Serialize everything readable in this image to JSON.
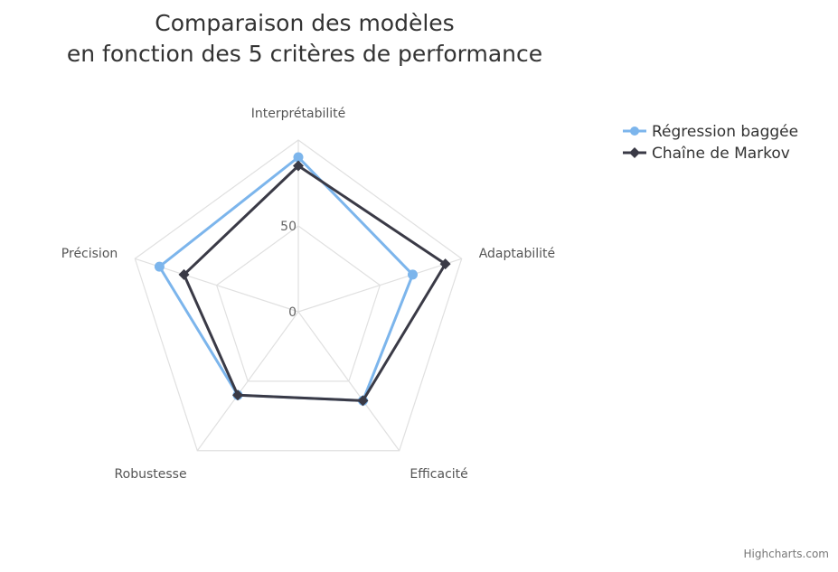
{
  "chart_data": {
    "type": "radar",
    "title": [
      "Comparaison des modèles",
      "en fonction des 5 critères de performance"
    ],
    "categories": [
      "Interprétabilité",
      "Adaptabilité",
      "Efficacité",
      "Robustesse",
      "Précision"
    ],
    "yticks": [
      "0",
      "50"
    ],
    "ylim": [
      0,
      100
    ],
    "series": [
      {
        "name": "Régression baggée",
        "color": "#7cb5ec",
        "marker": "circle-icon",
        "values": [
          90,
          70,
          64,
          60,
          85
        ]
      },
      {
        "name": "Chaîne de Markov",
        "color": "#3a3a46",
        "marker": "diamond-icon",
        "values": [
          85,
          90,
          64,
          60,
          70
        ]
      }
    ],
    "grid": true,
    "legend": "top-right",
    "credits": "Highcharts.com"
  }
}
